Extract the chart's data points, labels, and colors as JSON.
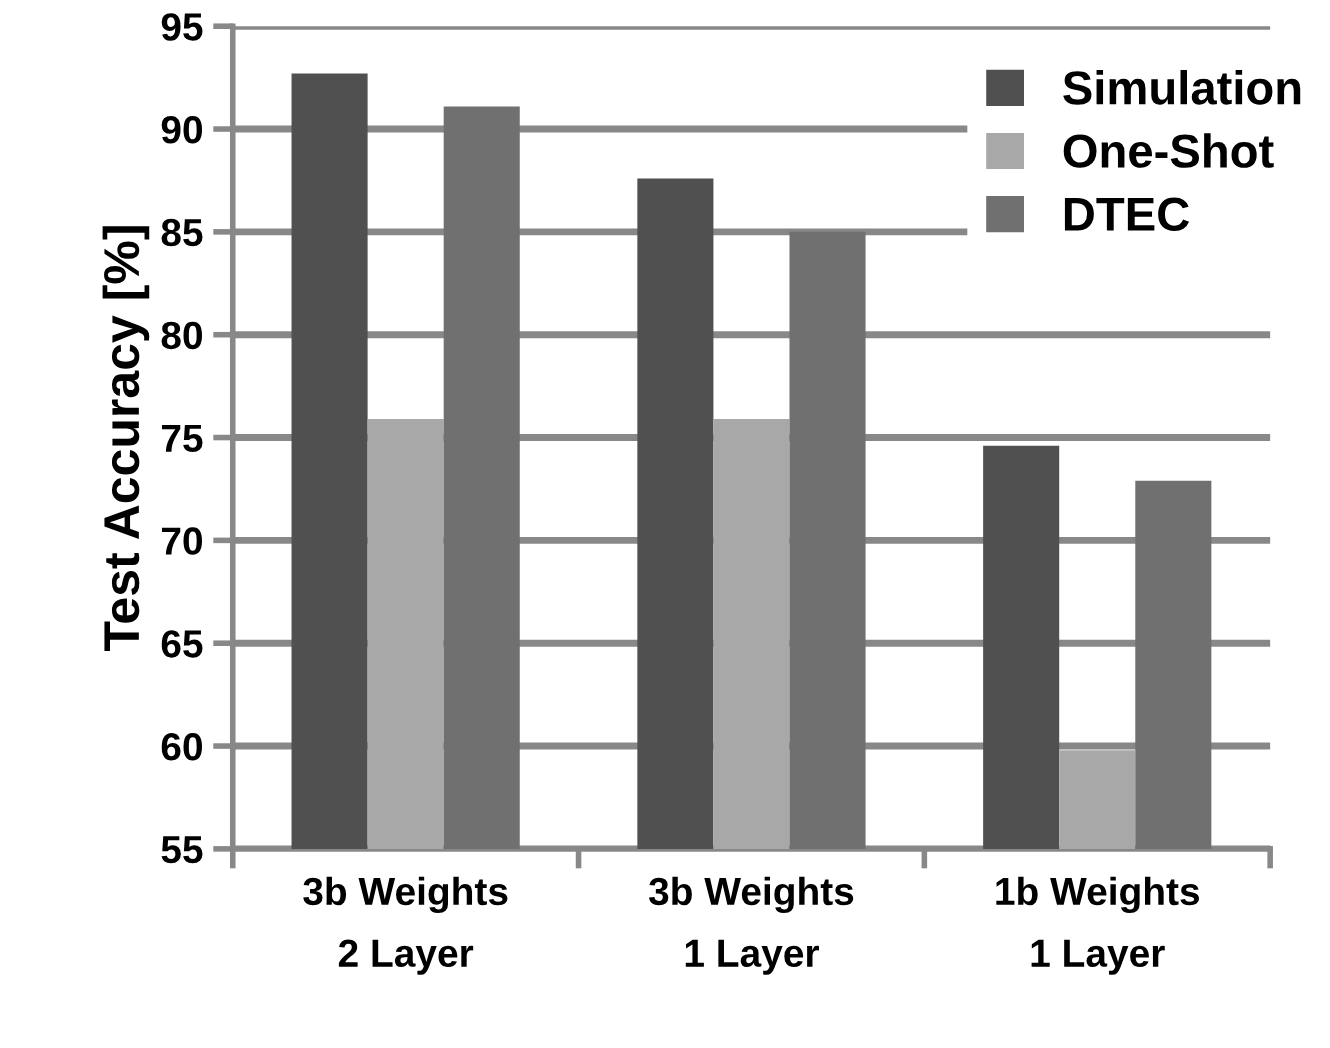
{
  "chart_data": {
    "type": "bar",
    "ylabel": "Test Accuracy [%]",
    "categories": [
      "3b Weights\n2 Layer",
      "3b Weights\n1 Layer",
      "1b Weights\n1 Layer"
    ],
    "series": [
      {
        "name": "Simulation",
        "color": "#505050",
        "values": [
          92.7,
          87.6,
          74.6
        ]
      },
      {
        "name": "One-Shot",
        "color": "#a8a8a8",
        "values": [
          75.9,
          75.9,
          59.8
        ]
      },
      {
        "name": "DTEC",
        "color": "#707070",
        "values": [
          91.1,
          85.0,
          72.9
        ]
      }
    ],
    "ylim": [
      55,
      95
    ],
    "yticks": [
      55,
      60,
      65,
      70,
      75,
      80,
      85,
      90,
      95
    ],
    "grid": "y",
    "legend": "top right"
  }
}
